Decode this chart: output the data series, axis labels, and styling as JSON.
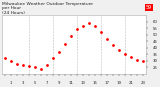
{
  "title": "Milwaukee Weather Outdoor Temperature\nper Hour\n(24 Hours)",
  "hours": [
    0,
    1,
    2,
    3,
    4,
    5,
    6,
    7,
    8,
    9,
    10,
    11,
    12,
    13,
    14,
    15,
    16,
    17,
    18,
    19,
    20,
    21,
    22,
    23
  ],
  "temps": [
    32,
    30,
    28,
    27,
    26,
    25,
    24,
    27,
    32,
    37,
    43,
    49,
    54,
    57,
    59,
    57,
    52,
    47,
    42,
    38,
    35,
    33,
    31,
    30
  ],
  "ylim": [
    20,
    65
  ],
  "xlim": [
    -0.5,
    23.5
  ],
  "dot_color": "#ff0000",
  "bg_color": "#f0f0f0",
  "plot_bg": "#ffffff",
  "grid_color": "#aaaaaa",
  "tick_color": "#222222",
  "title_color": "#222222",
  "title_fontsize": 3.2,
  "tick_fontsize": 2.8,
  "highlight_box_color": "#ff0000",
  "highlight_text": "59",
  "ytick_values": [
    25,
    30,
    35,
    40,
    45,
    50,
    55,
    60
  ],
  "grid_hours": [
    4,
    8,
    12,
    16,
    20
  ]
}
